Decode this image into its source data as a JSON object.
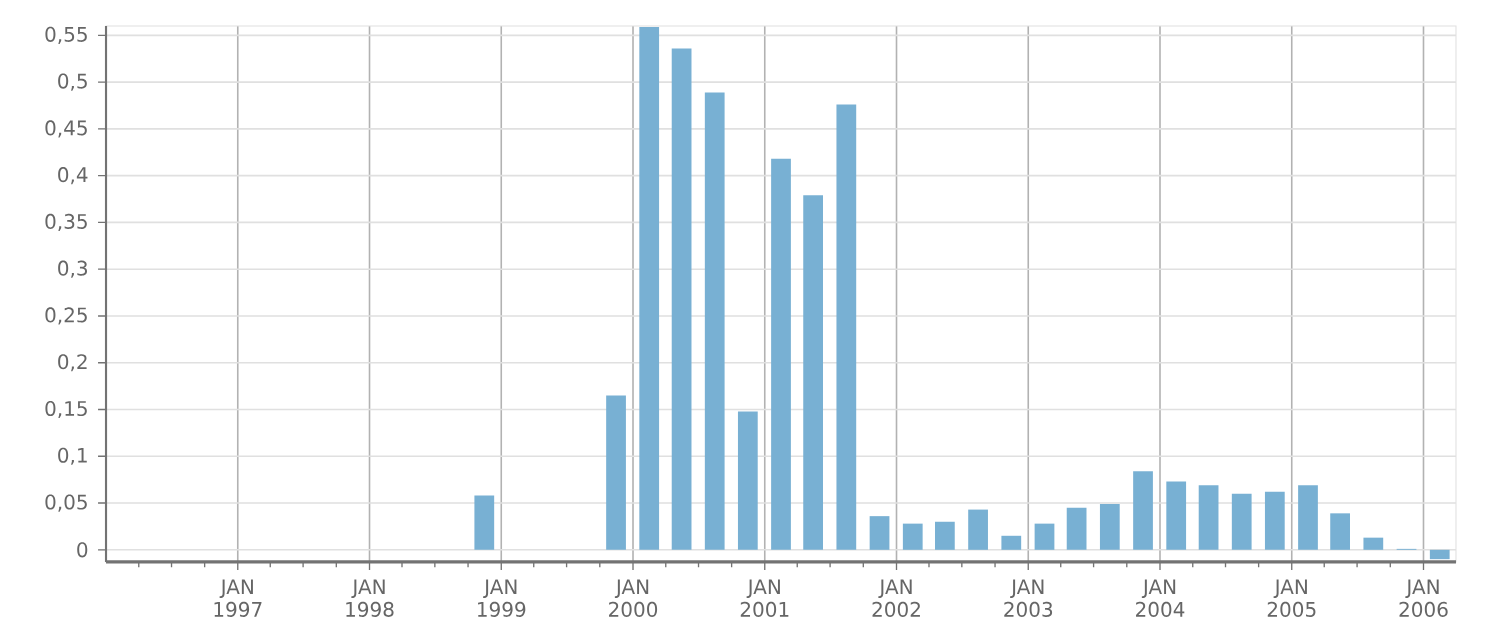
{
  "chart_data": {
    "type": "bar",
    "color": "#78b0d3",
    "x": [
      "1998-11-15",
      "1999-11-15",
      "2000-02-15",
      "2000-05-15",
      "2000-08-15",
      "2000-11-15",
      "2001-02-15",
      "2001-05-15",
      "2001-08-15",
      "2001-11-15",
      "2002-02-15",
      "2002-05-15",
      "2002-08-15",
      "2002-11-15",
      "2003-02-15",
      "2003-05-15",
      "2003-08-15",
      "2003-11-15",
      "2004-02-15",
      "2004-05-15",
      "2004-08-15",
      "2004-11-15",
      "2005-02-15",
      "2005-05-15",
      "2005-08-15",
      "2005-11-15",
      "2006-02-15"
    ],
    "values": [
      0.058,
      0.165,
      0.559,
      0.536,
      0.489,
      0.148,
      0.418,
      0.379,
      0.476,
      0.036,
      0.028,
      0.03,
      0.043,
      0.015,
      0.028,
      0.045,
      0.049,
      0.084,
      0.073,
      0.069,
      0.06,
      0.062,
      0.069,
      0.039,
      0.013,
      0.001,
      -0.01
    ],
    "xlim": [
      "1996-01-01",
      "2006-04-01"
    ],
    "xticks": [
      {
        "value": "1997-01-01",
        "label": "JAN 1997"
      },
      {
        "value": "1998-01-01",
        "label": "JAN 1998"
      },
      {
        "value": "1999-01-01",
        "label": "JAN 1999"
      },
      {
        "value": "2000-01-01",
        "label": "JAN 2000"
      },
      {
        "value": "2001-01-01",
        "label": "JAN 2001"
      },
      {
        "value": "2002-01-01",
        "label": "JAN 2002"
      },
      {
        "value": "2003-01-01",
        "label": "JAN 2003"
      },
      {
        "value": "2004-01-01",
        "label": "JAN 2004"
      },
      {
        "value": "2005-01-01",
        "label": "JAN 2005"
      },
      {
        "value": "2006-01-01",
        "label": "JAN 2006"
      },
      {
        "value": "1996-04-01",
        "label": null
      },
      {
        "value": "1996-07-01",
        "label": null
      },
      {
        "value": "1996-10-01",
        "label": null
      },
      {
        "value": "1997-04-01",
        "label": null
      },
      {
        "value": "1997-07-01",
        "label": null
      },
      {
        "value": "1997-10-01",
        "label": null
      },
      {
        "value": "1998-04-01",
        "label": null
      },
      {
        "value": "1998-07-01",
        "label": null
      },
      {
        "value": "1998-10-01",
        "label": null
      },
      {
        "value": "1999-04-01",
        "label": null
      },
      {
        "value": "1999-07-01",
        "label": null
      },
      {
        "value": "1999-10-01",
        "label": null
      },
      {
        "value": "2000-04-01",
        "label": null
      },
      {
        "value": "2000-07-01",
        "label": null
      },
      {
        "value": "2000-10-01",
        "label": null
      },
      {
        "value": "2001-04-01",
        "label": null
      },
      {
        "value": "2001-07-01",
        "label": null
      },
      {
        "value": "2001-10-01",
        "label": null
      },
      {
        "value": "2002-04-01",
        "label": null
      },
      {
        "value": "2002-07-01",
        "label": null
      },
      {
        "value": "2002-10-01",
        "label": null
      },
      {
        "value": "2003-04-01",
        "label": null
      },
      {
        "value": "2003-07-01",
        "label": null
      },
      {
        "value": "2003-10-01",
        "label": null
      },
      {
        "value": "2004-04-01",
        "label": null
      },
      {
        "value": "2004-07-01",
        "label": null
      },
      {
        "value": "2004-10-01",
        "label": null
      },
      {
        "value": "2005-04-01",
        "label": null
      },
      {
        "value": "2005-07-01",
        "label": null
      },
      {
        "value": "2005-10-01",
        "label": null
      }
    ],
    "ylim": [
      -0.013,
      0.56
    ],
    "yticks": [
      0,
      {
        "value": 0.05,
        "label": "0,05"
      },
      {
        "value": 0.1,
        "label": "0,1"
      },
      {
        "value": 0.15,
        "label": "0,15"
      },
      {
        "value": 0.2,
        "label": "0,2"
      },
      {
        "value": 0.25,
        "label": "0,25"
      },
      {
        "value": 0.3,
        "label": "0,3"
      },
      {
        "value": 0.35,
        "label": "0,35"
      },
      {
        "value": 0.4,
        "label": "0,4"
      },
      {
        "value": 0.45,
        "label": "0,45"
      },
      {
        "value": 0.5,
        "label": "0,5"
      },
      {
        "value": 0.55,
        "label": "0,55"
      }
    ],
    "grid": true
  }
}
